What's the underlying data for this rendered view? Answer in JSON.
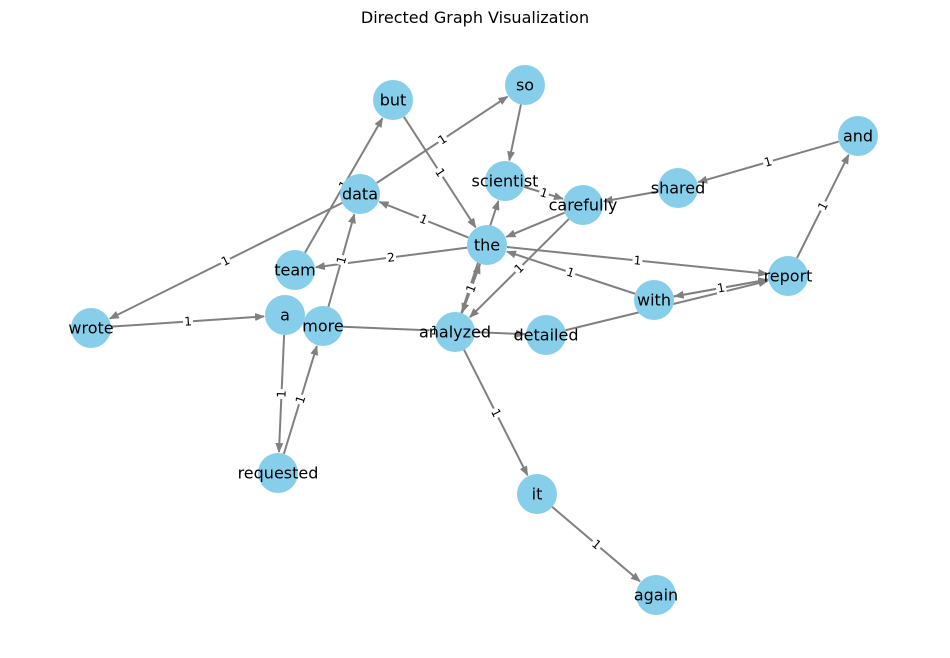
{
  "title": "Directed Graph Visualization",
  "colors": {
    "node": "#87CEEB",
    "edge": "#808080",
    "text": "#000000"
  },
  "nodes": [
    {
      "id": "but",
      "label": "but"
    },
    {
      "id": "so",
      "label": "so"
    },
    {
      "id": "and",
      "label": "and"
    },
    {
      "id": "scientist",
      "label": "scientist"
    },
    {
      "id": "shared",
      "label": "shared"
    },
    {
      "id": "data",
      "label": "data"
    },
    {
      "id": "carefully",
      "label": "carefully"
    },
    {
      "id": "the",
      "label": "the"
    },
    {
      "id": "team",
      "label": "team"
    },
    {
      "id": "report",
      "label": "report"
    },
    {
      "id": "a",
      "label": "a"
    },
    {
      "id": "wrote",
      "label": "wrote"
    },
    {
      "id": "more",
      "label": "more"
    },
    {
      "id": "analyzed",
      "label": "analyzed"
    },
    {
      "id": "with",
      "label": "with"
    },
    {
      "id": "detailed",
      "label": "detailed"
    },
    {
      "id": "requested",
      "label": "requested"
    },
    {
      "id": "it",
      "label": "it"
    },
    {
      "id": "again",
      "label": "again"
    }
  ],
  "edges": [
    {
      "source": "wrote",
      "target": "a",
      "weight": "1"
    },
    {
      "source": "a",
      "target": "requested",
      "weight": "1"
    },
    {
      "source": "requested",
      "target": "more",
      "weight": "1"
    },
    {
      "source": "more",
      "target": "data",
      "weight": "1"
    },
    {
      "source": "more",
      "target": "detailed",
      "weight": "1"
    },
    {
      "source": "data",
      "target": "wrote",
      "weight": "1"
    },
    {
      "source": "data",
      "target": "so",
      "weight": "1"
    },
    {
      "source": "team",
      "target": "but",
      "weight": "1"
    },
    {
      "source": "but",
      "target": "the",
      "weight": "1"
    },
    {
      "source": "the",
      "target": "team",
      "weight": "2"
    },
    {
      "source": "the",
      "target": "data",
      "weight": "1"
    },
    {
      "source": "the",
      "target": "report",
      "weight": "1"
    },
    {
      "source": "the",
      "target": "analyzed",
      "weight": "1"
    },
    {
      "source": "analyzed",
      "target": "the",
      "weight": "1"
    },
    {
      "source": "analyzed",
      "target": "it",
      "weight": "1"
    },
    {
      "source": "analyzed",
      "target": "scientist",
      "weight": "2"
    },
    {
      "source": "so",
      "target": "scientist",
      "weight": ""
    },
    {
      "source": "scientist",
      "target": "carefully",
      "weight": "1"
    },
    {
      "source": "carefully",
      "target": "the",
      "weight": ""
    },
    {
      "source": "carefully",
      "target": "analyzed",
      "weight": "1"
    },
    {
      "source": "shared",
      "target": "carefully",
      "weight": ""
    },
    {
      "source": "and",
      "target": "shared",
      "weight": "1"
    },
    {
      "source": "report",
      "target": "and",
      "weight": "1"
    },
    {
      "source": "report",
      "target": "with",
      "weight": "1"
    },
    {
      "source": "with",
      "target": "report",
      "weight": ""
    },
    {
      "source": "with",
      "target": "the",
      "weight": "1"
    },
    {
      "source": "detailed",
      "target": "report",
      "weight": ""
    },
    {
      "source": "it",
      "target": "again",
      "weight": "1"
    }
  ]
}
